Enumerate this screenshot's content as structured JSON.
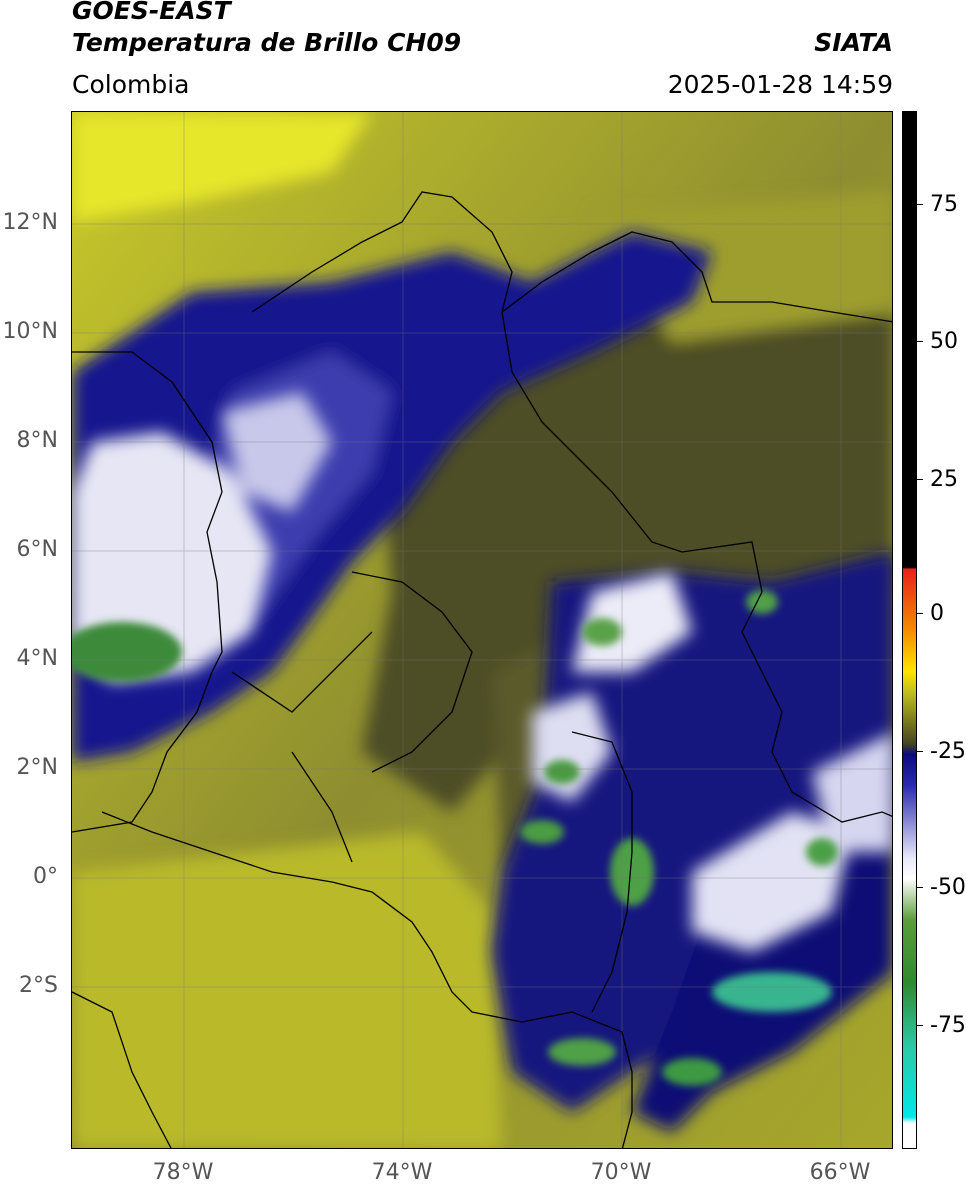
{
  "header": {
    "satellite": "GOES-EAST",
    "product": "Temperatura de Brillo CH09",
    "agency": "SIATA",
    "region": "Colombia",
    "datetime": "2025-01-28 14:59"
  },
  "axes": {
    "lat_labels": [
      "12°N",
      "10°N",
      "8°N",
      "6°N",
      "4°N",
      "2°N",
      "0°",
      "2°S"
    ],
    "lon_labels": [
      "78°W",
      "74°W",
      "70°W",
      "66°W"
    ]
  },
  "colorbar": {
    "ticks": [
      "75",
      "50",
      "25",
      "0",
      "-25",
      "-50",
      "-75"
    ],
    "colors": {
      "warm": "#000000",
      "red": "#e8201c",
      "yellow": "#ffe400",
      "olive": "#bfbf1f",
      "navy": "#0b0b7e",
      "white": "#ffffff",
      "green": "#2e8a2e",
      "cyan": "#00e8e8"
    }
  }
}
